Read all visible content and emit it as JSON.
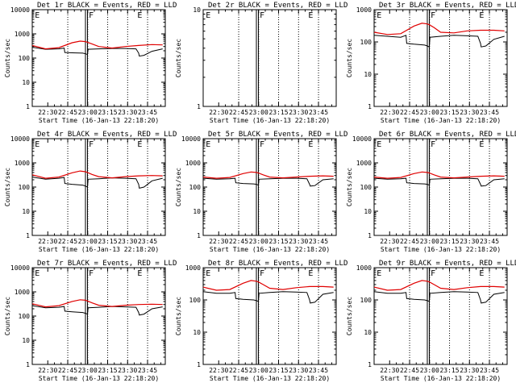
{
  "figure": {
    "title_template": "BLACK = Events, RED = LLD",
    "xlabel": "Start Time (16-Jan-13 22:18:20)",
    "ylabel": "Counts/sec",
    "yticks": [
      "1",
      "10",
      "100",
      "1000",
      "10000"
    ],
    "xticks": [
      "22:30",
      "22:45",
      "23:00",
      "23:15",
      "23:30",
      "23:45"
    ],
    "markers": [
      "E",
      "F",
      "E"
    ]
  },
  "chart_data": [
    {
      "type": "line",
      "title": "Det 1r BLACK = Events, RED = LLD",
      "xlabel": "Start Time (16-Jan-13 22:18:20)",
      "ylabel": "Counts/sec",
      "yscale": "log",
      "ylim": [
        1,
        10000
      ],
      "xlim_minutes_from_start": [
        0,
        100
      ],
      "vlines_min": [
        26.7,
        41.7,
        56.7,
        71.7,
        86.7
      ],
      "saa_min": [
        40,
        41.5
      ],
      "series": [
        {
          "name": "Events",
          "color": "#000000",
          "x": [
            0,
            10,
            20,
            24,
            24.5,
            30,
            38,
            40,
            41.5,
            42,
            50,
            60,
            70,
            78,
            80,
            80.5,
            84,
            90,
            98
          ],
          "y": [
            280,
            230,
            240,
            260,
            170,
            165,
            160,
            150,
            140,
            230,
            240,
            250,
            250,
            240,
            160,
            120,
            130,
            190,
            240
          ]
        },
        {
          "name": "LLD",
          "color": "#e00000",
          "x": [
            0,
            10,
            20,
            30,
            36,
            40,
            41.5,
            45,
            50,
            60,
            70,
            80,
            90,
            98
          ],
          "y": [
            330,
            240,
            270,
            430,
            500,
            480,
            450,
            380,
            300,
            260,
            300,
            330,
            360,
            350
          ]
        }
      ]
    },
    {
      "type": "line",
      "title": "Det 2r BLACK = Events, RED = LLD",
      "xlabel": "Start Time (16-Jan-13 22:18:20)",
      "ylabel": "Counts/sec",
      "yscale": "log",
      "ylim": [
        1,
        10
      ],
      "xlim_minutes_from_start": [
        0,
        100
      ],
      "vlines_min": [
        26.7,
        41.7,
        56.7,
        71.7,
        86.7
      ],
      "saa_min": [
        40,
        41.5
      ],
      "series": []
    },
    {
      "type": "line",
      "title": "Det 3r BLACK = Events, RED = LLD",
      "xlabel": "Start Time (16-Jan-13 22:18:20)",
      "ylabel": "Counts/sec",
      "yscale": "log",
      "ylim": [
        1,
        1000
      ],
      "xlim_minutes_from_start": [
        0,
        100
      ],
      "vlines_min": [
        26.7,
        41.7,
        56.7,
        71.7,
        86.7
      ],
      "saa_min": [
        40,
        41.5
      ],
      "series": [
        {
          "name": "Events",
          "color": "#000000",
          "x": [
            0,
            10,
            20,
            24,
            24.5,
            30,
            38,
            40,
            41.5,
            42,
            50,
            60,
            70,
            78,
            80,
            80.5,
            84,
            90,
            98
          ],
          "y": [
            160,
            150,
            140,
            160,
            90,
            85,
            80,
            75,
            70,
            140,
            150,
            160,
            155,
            150,
            90,
            70,
            75,
            120,
            150
          ]
        },
        {
          "name": "LLD",
          "color": "#e00000",
          "x": [
            0,
            10,
            20,
            30,
            36,
            40,
            41.5,
            45,
            50,
            60,
            70,
            80,
            90,
            98
          ],
          "y": [
            200,
            170,
            180,
            310,
            380,
            360,
            340,
            280,
            200,
            190,
            220,
            230,
            230,
            220
          ]
        }
      ]
    },
    {
      "type": "line",
      "title": "Det 4r BLACK = Events, RED = LLD",
      "xlabel": "Start Time (16-Jan-13 22:18:20)",
      "ylabel": "Counts/sec",
      "yscale": "log",
      "ylim": [
        1,
        10000
      ],
      "xlim_minutes_from_start": [
        0,
        100
      ],
      "vlines_min": [
        26.7,
        41.7,
        56.7,
        71.7,
        86.7
      ],
      "saa_min": [
        40,
        41.5
      ],
      "series": [
        {
          "name": "Events",
          "color": "#000000",
          "x": [
            0,
            10,
            20,
            24,
            24.5,
            30,
            38,
            40,
            41.5,
            42,
            50,
            60,
            70,
            78,
            80,
            80.5,
            84,
            90,
            98
          ],
          "y": [
            260,
            210,
            230,
            250,
            140,
            130,
            120,
            110,
            100,
            210,
            220,
            240,
            230,
            220,
            130,
            90,
            100,
            180,
            230
          ]
        },
        {
          "name": "LLD",
          "color": "#e00000",
          "x": [
            0,
            10,
            20,
            30,
            36,
            40,
            41.5,
            45,
            50,
            60,
            70,
            80,
            90,
            98
          ],
          "y": [
            320,
            230,
            260,
            390,
            460,
            430,
            400,
            330,
            270,
            240,
            270,
            290,
            300,
            290
          ]
        }
      ]
    },
    {
      "type": "line",
      "title": "Det 5r BLACK = Events, RED = LLD",
      "xlabel": "Start Time (16-Jan-13 22:18:20)",
      "ylabel": "Counts/sec",
      "yscale": "log",
      "ylim": [
        1,
        10000
      ],
      "xlim_minutes_from_start": [
        0,
        100
      ],
      "vlines_min": [
        26.7,
        41.7,
        56.7,
        71.7,
        86.7
      ],
      "saa_min": [
        40,
        41.5
      ],
      "series": [
        {
          "name": "Events",
          "color": "#000000",
          "x": [
            0,
            10,
            20,
            24,
            24.5,
            30,
            38,
            40,
            41.5,
            42,
            50,
            60,
            70,
            78,
            80,
            80.5,
            84,
            90,
            98
          ],
          "y": [
            230,
            210,
            220,
            230,
            150,
            140,
            135,
            130,
            120,
            210,
            220,
            230,
            230,
            220,
            130,
            110,
            115,
            200,
            220
          ]
        },
        {
          "name": "LLD",
          "color": "#e00000",
          "x": [
            0,
            10,
            20,
            30,
            36,
            40,
            41.5,
            45,
            50,
            60,
            70,
            80,
            90,
            98
          ],
          "y": [
            260,
            230,
            250,
            360,
            420,
            400,
            380,
            320,
            260,
            240,
            260,
            280,
            290,
            280
          ]
        }
      ]
    },
    {
      "type": "line",
      "title": "Det 6r BLACK = Events, RED = LLD",
      "xlabel": "Start Time (16-Jan-13 22:18:20)",
      "ylabel": "Counts/sec",
      "yscale": "log",
      "ylim": [
        1,
        10000
      ],
      "xlim_minutes_from_start": [
        0,
        100
      ],
      "vlines_min": [
        26.7,
        41.7,
        56.7,
        71.7,
        86.7
      ],
      "saa_min": [
        40,
        41.5
      ],
      "series": [
        {
          "name": "Events",
          "color": "#000000",
          "x": [
            0,
            10,
            20,
            24,
            24.5,
            30,
            38,
            40,
            41.5,
            42,
            50,
            60,
            70,
            78,
            80,
            80.5,
            84,
            90,
            98
          ],
          "y": [
            230,
            210,
            220,
            230,
            150,
            140,
            135,
            130,
            120,
            210,
            220,
            230,
            230,
            220,
            130,
            110,
            115,
            200,
            220
          ]
        },
        {
          "name": "LLD",
          "color": "#e00000",
          "x": [
            0,
            10,
            20,
            30,
            36,
            40,
            41.5,
            45,
            50,
            60,
            70,
            80,
            90,
            98
          ],
          "y": [
            260,
            230,
            250,
            360,
            420,
            400,
            380,
            320,
            260,
            240,
            260,
            280,
            290,
            280
          ]
        }
      ]
    },
    {
      "type": "line",
      "title": "Det 7r BLACK = Events, RED = LLD",
      "xlabel": "Start Time (16-Jan-13 22:18:20)",
      "ylabel": "Counts/sec",
      "yscale": "log",
      "ylim": [
        1,
        10000
      ],
      "xlim_minutes_from_start": [
        0,
        100
      ],
      "vlines_min": [
        26.7,
        41.7,
        56.7,
        71.7,
        86.7
      ],
      "saa_min": [
        40,
        41.5
      ],
      "series": [
        {
          "name": "Events",
          "color": "#000000",
          "x": [
            0,
            10,
            20,
            24,
            24.5,
            30,
            38,
            40,
            41.5,
            42,
            50,
            60,
            70,
            78,
            80,
            80.5,
            84,
            90,
            98
          ],
          "y": [
            270,
            220,
            230,
            250,
            160,
            150,
            140,
            130,
            120,
            220,
            230,
            250,
            240,
            230,
            140,
            110,
            120,
            200,
            240
          ]
        },
        {
          "name": "LLD",
          "color": "#e00000",
          "x": [
            0,
            10,
            20,
            30,
            36,
            40,
            41.5,
            45,
            50,
            60,
            70,
            80,
            90,
            98
          ],
          "y": [
            320,
            240,
            270,
            400,
            470,
            450,
            420,
            350,
            280,
            250,
            280,
            300,
            310,
            300
          ]
        }
      ]
    },
    {
      "type": "line",
      "title": "Det 8r BLACK = Events, RED = LLD",
      "xlabel": "Start Time (16-Jan-13 22:18:20)",
      "ylabel": "Counts/sec",
      "yscale": "log",
      "ylim": [
        1,
        1000
      ],
      "xlim_minutes_from_start": [
        0,
        100
      ],
      "vlines_min": [
        26.7,
        41.7,
        56.7,
        71.7,
        86.7
      ],
      "saa_min": [
        40,
        41.5
      ],
      "series": [
        {
          "name": "Events",
          "color": "#000000",
          "x": [
            0,
            10,
            20,
            24,
            24.5,
            30,
            38,
            40,
            41.5,
            42,
            50,
            60,
            70,
            78,
            80,
            80.5,
            84,
            90,
            98
          ],
          "y": [
            180,
            160,
            160,
            170,
            110,
            105,
            100,
            95,
            90,
            160,
            170,
            180,
            175,
            170,
            100,
            80,
            85,
            150,
            170
          ]
        },
        {
          "name": "LLD",
          "color": "#e00000",
          "x": [
            0,
            10,
            20,
            30,
            36,
            40,
            41.5,
            45,
            50,
            60,
            70,
            80,
            90,
            98
          ],
          "y": [
            250,
            200,
            210,
            330,
            400,
            380,
            360,
            300,
            230,
            210,
            240,
            260,
            260,
            250
          ]
        }
      ]
    },
    {
      "type": "line",
      "title": "Det 9r BLACK = Events, RED = LLD",
      "xlabel": "Start Time (16-Jan-13 22:18:20)",
      "ylabel": "Counts/sec",
      "yscale": "log",
      "ylim": [
        1,
        1000
      ],
      "xlim_minutes_from_start": [
        0,
        100
      ],
      "vlines_min": [
        26.7,
        41.7,
        56.7,
        71.7,
        86.7
      ],
      "saa_min": [
        40,
        41.5
      ],
      "series": [
        {
          "name": "Events",
          "color": "#000000",
          "x": [
            0,
            10,
            20,
            24,
            24.5,
            30,
            38,
            40,
            41.5,
            42,
            50,
            60,
            70,
            78,
            80,
            80.5,
            84,
            90,
            98
          ],
          "y": [
            180,
            160,
            160,
            170,
            110,
            105,
            100,
            95,
            90,
            160,
            170,
            180,
            175,
            170,
            100,
            80,
            85,
            150,
            170
          ]
        },
        {
          "name": "LLD",
          "color": "#e00000",
          "x": [
            0,
            10,
            20,
            30,
            36,
            40,
            41.5,
            45,
            50,
            60,
            70,
            80,
            90,
            98
          ],
          "y": [
            250,
            200,
            210,
            330,
            400,
            380,
            360,
            300,
            230,
            210,
            240,
            260,
            260,
            250
          ]
        }
      ]
    }
  ]
}
